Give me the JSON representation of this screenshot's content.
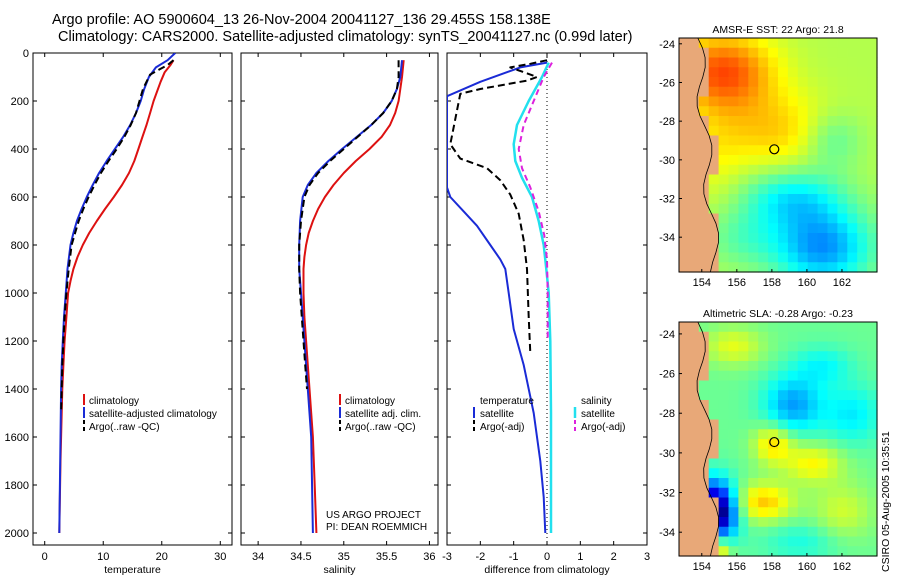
{
  "titles": {
    "line1": "Argo profile: AO 5900604_13 26-Nov-2004 20041127_136 29.455S 158.138E",
    "line2": "Climatology: CARS2000. Satellite-adjusted climatology: synTS_20041127.nc (0.99d later)"
  },
  "stamp": "CSIRO 05-Aug-2005 10:35:51",
  "project_note": [
    "US ARGO PROJECT",
    "PI: DEAN ROEMMICH"
  ],
  "colors": {
    "climatology": "#dd1111",
    "satellite": "#1a2bd6",
    "argo": "#000000",
    "satellite_salinity": "#22e0ee",
    "argo_adj_salinity": "#dd22dd",
    "land": "#e8a878"
  },
  "chart_data": [
    {
      "type": "line",
      "xlabel": "temperature",
      "ylabel": "",
      "xlim": [
        -2,
        32
      ],
      "ylim": [
        2050,
        0
      ],
      "xticks": [
        0,
        10,
        20,
        30
      ],
      "yticks": [
        0,
        200,
        400,
        600,
        800,
        1000,
        1200,
        1400,
        1600,
        1800,
        2000
      ],
      "legend": {
        "position": "bottom-center",
        "entries": [
          "climatology",
          "satellite-adjusted climatology",
          "Argo(..raw -QC)"
        ]
      },
      "series": [
        {
          "name": "climatology",
          "color": "#dd1111",
          "dash": "none",
          "width": 2,
          "x": [
            22.0,
            21.5,
            20.5,
            19.8,
            19.2,
            18.6,
            18.0,
            17.4,
            16.7,
            16.0,
            15.3,
            14.4,
            13.2,
            11.8,
            10.3,
            8.9,
            7.6,
            6.5,
            5.6,
            4.9,
            4.4,
            4.0,
            3.7,
            3.4,
            3.2,
            3.0,
            2.9,
            2.8,
            2.7,
            2.6,
            2.5
          ],
          "y": [
            30,
            50,
            80,
            120,
            160,
            200,
            250,
            300,
            350,
            400,
            450,
            500,
            550,
            600,
            650,
            700,
            750,
            800,
            850,
            900,
            950,
            1000,
            1100,
            1200,
            1300,
            1400,
            1500,
            1600,
            1700,
            1850,
            2000
          ]
        },
        {
          "name": "satellite-adjusted climatology",
          "color": "#1a2bd6",
          "dash": "none",
          "width": 2,
          "x": [
            22.3,
            21.0,
            19.0,
            17.8,
            17.0,
            16.4,
            15.6,
            14.6,
            13.4,
            12.0,
            10.6,
            9.3,
            8.2,
            7.2,
            6.3,
            5.5,
            4.9,
            4.4,
            3.9,
            3.6,
            3.3,
            3.1,
            2.9,
            2.8,
            2.7,
            2.6,
            2.5
          ],
          "y": [
            0,
            30,
            60,
            100,
            150,
            200,
            250,
            300,
            350,
            400,
            450,
            500,
            550,
            600,
            650,
            700,
            750,
            800,
            900,
            1000,
            1100,
            1200,
            1300,
            1400,
            1600,
            1800,
            2000
          ]
        },
        {
          "name": "Argo(..raw -QC)",
          "color": "#000000",
          "dash": "7,4",
          "width": 2,
          "x": [
            22.0,
            21.0,
            19.5,
            18.0,
            17.4,
            16.8,
            16.2,
            15.6,
            14.7,
            13.6,
            12.3,
            10.9,
            9.6,
            8.5,
            7.5,
            6.6,
            5.8,
            5.2,
            4.6,
            4.1,
            3.7,
            3.4,
            3.2,
            3.0,
            2.9,
            2.8
          ],
          "y": [
            30,
            50,
            70,
            90,
            120,
            150,
            200,
            250,
            300,
            350,
            400,
            450,
            500,
            550,
            600,
            650,
            700,
            750,
            800,
            900,
            1000,
            1100,
            1200,
            1300,
            1400,
            1500
          ]
        }
      ]
    },
    {
      "type": "line",
      "xlabel": "salinity",
      "xlim": [
        33.8,
        36.1
      ],
      "ylim": [
        2050,
        0
      ],
      "xticks": [
        34,
        34.5,
        35,
        35.5,
        36
      ],
      "yticks": [
        0,
        200,
        400,
        600,
        800,
        1000,
        1200,
        1400,
        1600,
        1800,
        2000
      ],
      "legend": {
        "position": "bottom-center",
        "entries": [
          "climatology",
          "satellite adj. clim.",
          "Argo(..raw -QC)"
        ]
      },
      "series": [
        {
          "name": "climatology",
          "color": "#dd1111",
          "dash": "none",
          "width": 2,
          "x": [
            35.7,
            35.68,
            35.66,
            35.64,
            35.6,
            35.54,
            35.44,
            35.3,
            35.14,
            35.0,
            34.88,
            34.78,
            34.7,
            34.64,
            34.59,
            34.56,
            34.54,
            34.53,
            34.53,
            34.54,
            34.56,
            34.58,
            34.6,
            34.62,
            34.64,
            34.66,
            34.68
          ],
          "y": [
            30,
            100,
            150,
            200,
            250,
            300,
            350,
            400,
            450,
            500,
            550,
            600,
            650,
            700,
            750,
            800,
            850,
            900,
            1000,
            1100,
            1200,
            1300,
            1400,
            1500,
            1600,
            1800,
            2000
          ]
        },
        {
          "name": "satellite adj. clim.",
          "color": "#1a2bd6",
          "dash": "none",
          "width": 2,
          "x": [
            35.68,
            35.66,
            35.62,
            35.56,
            35.46,
            35.32,
            35.15,
            34.98,
            34.82,
            34.68,
            34.58,
            34.52,
            34.49,
            34.48,
            34.48,
            34.5,
            34.52,
            34.54,
            34.56,
            34.58,
            34.6,
            34.62,
            34.64
          ],
          "y": [
            30,
            100,
            150,
            200,
            250,
            300,
            350,
            400,
            450,
            500,
            550,
            600,
            700,
            800,
            900,
            1000,
            1100,
            1200,
            1300,
            1400,
            1500,
            1600,
            2000
          ]
        },
        {
          "name": "Argo(..raw -QC)",
          "color": "#000000",
          "dash": "7,4",
          "width": 2,
          "x": [
            35.64,
            35.64,
            35.62,
            35.56,
            35.46,
            35.32,
            35.16,
            35.0,
            34.84,
            34.7,
            34.6,
            34.54,
            34.5,
            34.48,
            34.48,
            34.49,
            34.51,
            34.53,
            34.55,
            34.57
          ],
          "y": [
            30,
            100,
            150,
            200,
            250,
            300,
            350,
            400,
            450,
            500,
            550,
            600,
            700,
            800,
            900,
            1000,
            1100,
            1200,
            1300,
            1400
          ]
        }
      ]
    },
    {
      "type": "line",
      "xlabel": "difference from climatology",
      "xlim": [
        -3,
        3
      ],
      "ylim": [
        2050,
        0
      ],
      "xticks": [
        -3,
        -2,
        -1,
        0,
        1,
        2,
        3
      ],
      "yticks": [
        0,
        200,
        400,
        600,
        800,
        1000,
        1200,
        1400,
        1600,
        1800,
        2000
      ],
      "zero_line": 0,
      "legend": {
        "position": "bottom",
        "left_group": [
          "temperature",
          "satellite",
          "Argo(-adj)"
        ],
        "right_group": [
          "salinity",
          "satellite",
          "Argo(-adj)"
        ]
      },
      "series": [
        {
          "name": "temperature satellite",
          "color": "#1a2bd6",
          "dash": "none",
          "width": 2,
          "x": [
            0.0,
            -0.8,
            -2.0,
            -3.0,
            -3.0,
            -3.0,
            -3.0,
            -3.0,
            -3.0,
            -2.9,
            -2.5,
            -2.1,
            -1.7,
            -1.4,
            -1.25,
            -1.15,
            -1.0,
            -0.7,
            -0.4,
            -0.2,
            -0.1,
            -0.05
          ],
          "y": [
            40,
            60,
            120,
            180,
            220,
            300,
            400,
            500,
            560,
            600,
            660,
            720,
            800,
            860,
            900,
            1000,
            1150,
            1300,
            1500,
            1700,
            1850,
            2000
          ]
        },
        {
          "name": "temperature Argo(-adj)",
          "color": "#000000",
          "dash": "7,4",
          "width": 2,
          "x": [
            0.0,
            -0.5,
            -1.1,
            -0.7,
            -0.3,
            -0.6,
            -1.2,
            -2.0,
            -2.6,
            -2.9,
            -2.6,
            -2.2,
            -1.8,
            -1.4,
            -1.1,
            -0.85,
            -0.7,
            -0.6,
            -0.55,
            -0.5
          ],
          "y": [
            30,
            45,
            60,
            80,
            100,
            115,
            130,
            150,
            170,
            380,
            440,
            460,
            480,
            530,
            590,
            670,
            780,
            900,
            1100,
            1250
          ]
        },
        {
          "name": "salinity satellite",
          "color": "#22e0ee",
          "dash": "none",
          "width": 2.5,
          "x": [
            0.05,
            -0.15,
            -0.55,
            -0.9,
            -1.0,
            -0.95,
            -0.75,
            -0.45,
            -0.25,
            -0.1,
            -0.02,
            0.05,
            0.1,
            0.12,
            0.12,
            0.12
          ],
          "y": [
            40,
            100,
            200,
            300,
            380,
            450,
            520,
            600,
            700,
            800,
            900,
            1000,
            1200,
            1500,
            1800,
            2000
          ]
        },
        {
          "name": "salinity Argo(-adj)",
          "color": "#dd22dd",
          "dash": "6,4",
          "width": 2,
          "x": [
            0.15,
            -0.1,
            -0.4,
            -0.7,
            -0.85,
            -0.75,
            -0.5,
            -0.25,
            -0.08,
            0.0,
            0.02,
            0.02
          ],
          "y": [
            40,
            100,
            200,
            300,
            400,
            480,
            560,
            660,
            760,
            860,
            1000,
            1200
          ]
        }
      ]
    }
  ],
  "maps": [
    {
      "title": "AMSR-E SST: 22 Argo: 21.8",
      "xticks": [
        154,
        156,
        158,
        160,
        162
      ],
      "yticks": [
        -24,
        -26,
        -28,
        -30,
        -32,
        -34
      ],
      "xlim": [
        152.7,
        164.0
      ],
      "ylim": [
        -35.8,
        -23.7
      ],
      "marker": {
        "lon": 158.138,
        "lat": -29.455
      }
    },
    {
      "title": "Altimetric SLA: -0.28 Argo: -0.23",
      "xticks": [
        154,
        156,
        158,
        160,
        162
      ],
      "yticks": [
        -24,
        -26,
        -28,
        -30,
        -32,
        -34
      ],
      "xlim": [
        152.7,
        164.0
      ],
      "ylim": [
        -35.2,
        -23.4
      ],
      "marker": {
        "lon": 158.138,
        "lat": -29.455
      }
    }
  ]
}
